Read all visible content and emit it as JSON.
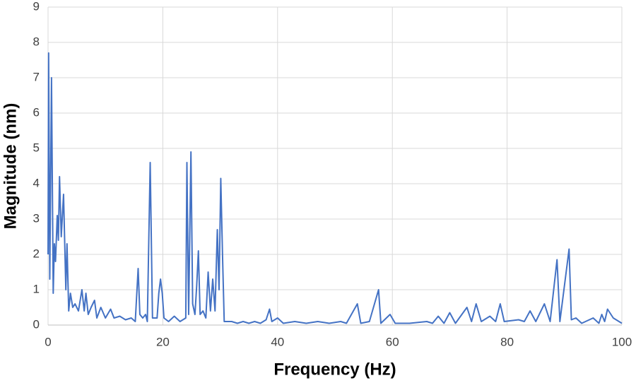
{
  "chart_data": {
    "type": "line",
    "x_label": "Frequency (Hz)",
    "y_label": "Magnitude (nm)",
    "x": [
      0,
      0.1,
      0.3,
      0.6,
      0.9,
      1.1,
      1.3,
      1.6,
      1.8,
      2.0,
      2.3,
      2.7,
      3.1,
      3.3,
      3.6,
      3.9,
      4.3,
      4.7,
      5.3,
      5.9,
      6.3,
      6.6,
      7.0,
      7.5,
      8.1,
      8.5,
      9.2,
      10,
      10.9,
      11.5,
      12.5,
      13.5,
      14.5,
      15.2,
      15.7,
      16,
      16.5,
      17,
      17.3,
      17.8,
      18.2,
      19,
      19.3,
      19.6,
      19.9,
      20.2,
      21,
      22,
      23,
      24,
      24.2,
      24.5,
      24.9,
      25.2,
      25.6,
      25.9,
      26.2,
      26.5,
      27,
      27.5,
      27.9,
      28.3,
      28.7,
      29.1,
      29.5,
      29.8,
      30.1,
      30.4,
      30.7,
      32,
      33,
      34,
      35,
      36,
      37,
      38,
      38.6,
      39,
      40,
      41,
      43,
      45,
      47,
      49,
      51,
      52,
      53.9,
      54.5,
      56,
      57.6,
      58,
      59.6,
      60.5,
      63,
      66,
      67,
      68,
      69,
      70,
      71,
      73,
      73.8,
      74.6,
      75.5,
      77,
      78,
      78.8,
      79.5,
      82,
      83,
      84,
      85,
      86.5,
      87.5,
      88.7,
      89.2,
      90.8,
      91.2,
      92,
      93,
      95,
      96,
      96.5,
      97,
      97.5,
      98.5,
      100
    ],
    "series": [
      {
        "name": "Magnitude",
        "color": "#4472c4",
        "values": [
          2,
          7.7,
          1.3,
          7.0,
          0.9,
          2.3,
          1.8,
          3.1,
          2.4,
          4.2,
          2.5,
          3.7,
          1.0,
          2.3,
          0.4,
          0.9,
          0.5,
          0.6,
          0.4,
          1.0,
          0.4,
          0.9,
          0.3,
          0.5,
          0.7,
          0.2,
          0.5,
          0.2,
          0.45,
          0.2,
          0.25,
          0.15,
          0.2,
          0.1,
          1.6,
          0.3,
          0.2,
          0.3,
          0.1,
          4.6,
          0.2,
          0.2,
          0.9,
          1.3,
          0.9,
          0.2,
          0.1,
          0.25,
          0.1,
          0.2,
          4.6,
          0.3,
          4.9,
          0.6,
          0.3,
          1.1,
          2.1,
          0.3,
          0.4,
          0.2,
          1.5,
          0.4,
          1.3,
          0.4,
          2.7,
          1.0,
          4.15,
          2.0,
          0.1,
          0.1,
          0.05,
          0.1,
          0.05,
          0.1,
          0.05,
          0.15,
          0.45,
          0.1,
          0.2,
          0.05,
          0.1,
          0.05,
          0.1,
          0.05,
          0.1,
          0.05,
          0.6,
          0.05,
          0.1,
          1.0,
          0.05,
          0.3,
          0.05,
          0.05,
          0.1,
          0.05,
          0.25,
          0.05,
          0.35,
          0.05,
          0.5,
          0.1,
          0.6,
          0.1,
          0.25,
          0.1,
          0.6,
          0.1,
          0.15,
          0.1,
          0.4,
          0.1,
          0.6,
          0.1,
          1.85,
          0.1,
          2.15,
          0.15,
          0.2,
          0.05,
          0.2,
          0.05,
          0.3,
          0.1,
          0.45,
          0.2,
          0.05
        ]
      }
    ],
    "xlim": [
      0,
      100
    ],
    "xticks": [
      0,
      20,
      40,
      60,
      80,
      100
    ],
    "ylim": [
      0,
      9
    ],
    "yticks": [
      0,
      1,
      2,
      3,
      4,
      5,
      6,
      7,
      8,
      9
    ],
    "grid": true
  }
}
